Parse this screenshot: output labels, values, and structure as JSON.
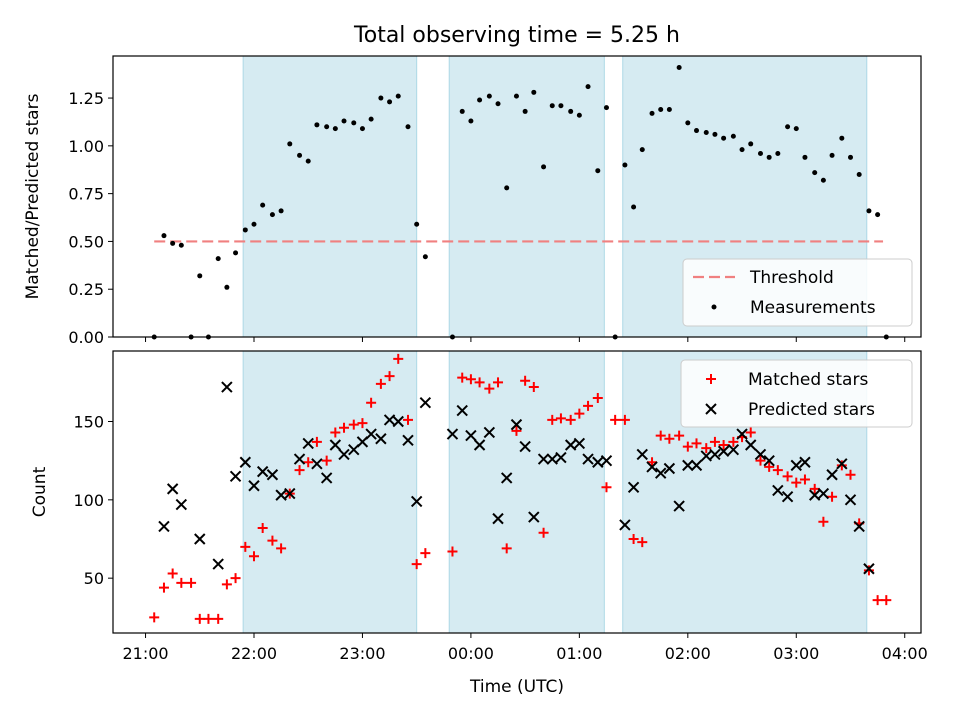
{
  "title": "Total observing time = 5.25 h",
  "colors": {
    "band": "#add8e6",
    "threshold": "#f08080",
    "matched": "#ff0000",
    "predicted": "#000000",
    "measurement": "#000000"
  },
  "chart_data": [
    {
      "type": "scatter",
      "ylabel": "Matched/Predicted stars",
      "xlabel": "",
      "ylim": [
        0,
        1.47
      ],
      "yticks": [
        0.0,
        0.25,
        0.5,
        0.75,
        1.0,
        1.25
      ],
      "ytick_labels": [
        "0.00",
        "0.25",
        "0.50",
        "0.75",
        "1.00",
        "1.25"
      ],
      "xlim_hours": [
        20.7,
        28.15
      ],
      "xticks_hours": [
        21,
        22,
        23,
        24,
        25,
        26,
        27,
        28
      ],
      "grid": false,
      "legend": "lower-right",
      "bands_hours": [
        [
          21.9,
          23.5
        ],
        [
          23.8,
          25.23
        ],
        [
          25.4,
          27.65
        ]
      ],
      "threshold": {
        "name": "Threshold",
        "value": 0.5,
        "x_hours": [
          21.08,
          27.8
        ]
      },
      "series": [
        {
          "name": "Measurements",
          "x_hours": [
            21.08,
            21.17,
            21.25,
            21.33,
            21.42,
            21.5,
            21.58,
            21.67,
            21.75,
            21.83,
            21.92,
            22.0,
            22.08,
            22.17,
            22.25,
            22.33,
            22.42,
            22.5,
            22.58,
            22.67,
            22.75,
            22.83,
            22.92,
            23.0,
            23.08,
            23.17,
            23.25,
            23.33,
            23.42,
            23.5,
            23.58,
            23.83,
            23.92,
            24.0,
            24.08,
            24.17,
            24.25,
            24.33,
            24.42,
            24.5,
            24.58,
            24.67,
            24.75,
            24.83,
            24.92,
            25.0,
            25.08,
            25.17,
            25.25,
            25.33,
            25.42,
            25.5,
            25.58,
            25.67,
            25.75,
            25.83,
            25.92,
            26.0,
            26.08,
            26.17,
            26.25,
            26.33,
            26.42,
            26.5,
            26.58,
            26.67,
            26.75,
            26.83,
            26.92,
            27.0,
            27.08,
            27.17,
            27.25,
            27.33,
            27.42,
            27.5,
            27.58,
            27.67,
            27.75,
            27.83
          ],
          "values": [
            0.0,
            0.53,
            0.49,
            0.48,
            0.0,
            0.32,
            0.0,
            0.41,
            0.26,
            0.44,
            0.56,
            0.59,
            0.69,
            0.64,
            0.66,
            1.01,
            0.95,
            0.92,
            1.11,
            1.1,
            1.09,
            1.13,
            1.12,
            1.09,
            1.14,
            1.25,
            1.23,
            1.26,
            1.1,
            0.59,
            0.42,
            0.0,
            1.18,
            1.13,
            1.24,
            1.26,
            1.22,
            0.78,
            1.26,
            1.18,
            1.28,
            0.89,
            1.21,
            1.21,
            1.18,
            1.16,
            1.31,
            0.87,
            1.2,
            0.0,
            0.9,
            0.68,
            0.98,
            1.17,
            1.19,
            1.19,
            1.41,
            1.12,
            1.08,
            1.07,
            1.06,
            1.04,
            1.05,
            0.98,
            1.01,
            0.96,
            0.94,
            0.96,
            1.1,
            1.09,
            0.94,
            0.86,
            0.82,
            0.95,
            1.04,
            0.94,
            0.85,
            0.66,
            0.64,
            0.0
          ]
        }
      ]
    },
    {
      "type": "scatter",
      "ylabel": "Count",
      "xlabel": "Time (UTC)",
      "ylim": [
        15,
        195
      ],
      "yticks": [
        50,
        100,
        150
      ],
      "ytick_labels": [
        "50",
        "100",
        "150"
      ],
      "xlim_hours": [
        20.7,
        28.15
      ],
      "xticks_hours": [
        21,
        22,
        23,
        24,
        25,
        26,
        27,
        28
      ],
      "xtick_labels": [
        "21:00",
        "22:00",
        "23:00",
        "00:00",
        "01:00",
        "02:00",
        "03:00",
        "04:00"
      ],
      "grid": false,
      "legend": "top-right",
      "bands_hours": [
        [
          21.9,
          23.5
        ],
        [
          23.8,
          25.23
        ],
        [
          25.4,
          27.65
        ]
      ],
      "series": [
        {
          "name": "Matched stars",
          "marker": "+",
          "x_hours": [
            21.08,
            21.17,
            21.25,
            21.33,
            21.42,
            21.5,
            21.58,
            21.67,
            21.75,
            21.83,
            21.92,
            22.0,
            22.08,
            22.17,
            22.25,
            22.33,
            22.42,
            22.5,
            22.58,
            22.67,
            22.75,
            22.83,
            22.92,
            23.0,
            23.08,
            23.17,
            23.25,
            23.33,
            23.42,
            23.5,
            23.58,
            23.83,
            23.92,
            24.0,
            24.08,
            24.17,
            24.25,
            24.33,
            24.42,
            24.5,
            24.58,
            24.67,
            24.75,
            24.83,
            24.92,
            25.0,
            25.08,
            25.17,
            25.25,
            25.33,
            25.42,
            25.5,
            25.58,
            25.67,
            25.75,
            25.83,
            25.92,
            26.0,
            26.08,
            26.17,
            26.25,
            26.33,
            26.42,
            26.5,
            26.58,
            26.67,
            26.75,
            26.83,
            26.92,
            27.0,
            27.08,
            27.17,
            27.25,
            27.33,
            27.42,
            27.5,
            27.58,
            27.67,
            27.75,
            27.83
          ],
          "values": [
            25,
            44,
            53,
            47,
            47,
            24,
            24,
            24,
            46,
            50,
            70,
            64,
            82,
            74,
            69,
            104,
            119,
            124,
            137,
            125,
            143,
            146,
            148,
            149,
            162,
            174,
            179,
            190,
            151,
            59,
            66,
            67,
            178,
            177,
            175,
            171,
            175,
            69,
            144,
            176,
            172,
            79,
            151,
            152,
            151,
            155,
            160,
            165,
            108,
            151,
            151,
            75,
            73,
            124,
            141,
            139,
            141,
            134,
            136,
            133,
            137,
            135,
            137,
            140,
            143,
            125,
            121,
            119,
            115,
            111,
            113,
            107,
            86,
            102,
            122,
            116,
            85,
            55,
            36,
            36
          ]
        },
        {
          "name": "Predicted stars",
          "marker": "x",
          "x_hours": [
            21.17,
            21.25,
            21.33,
            21.5,
            21.67,
            21.75,
            21.83,
            21.92,
            22.0,
            22.08,
            22.17,
            22.25,
            22.33,
            22.42,
            22.5,
            22.58,
            22.67,
            22.75,
            22.83,
            22.92,
            23.0,
            23.08,
            23.17,
            23.25,
            23.33,
            23.42,
            23.5,
            23.58,
            23.83,
            23.92,
            24.0,
            24.08,
            24.17,
            24.25,
            24.33,
            24.42,
            24.5,
            24.58,
            24.67,
            24.75,
            24.83,
            24.92,
            25.0,
            25.08,
            25.17,
            25.25,
            25.42,
            25.5,
            25.58,
            25.67,
            25.75,
            25.83,
            25.92,
            26.0,
            26.08,
            26.17,
            26.25,
            26.33,
            26.42,
            26.5,
            26.58,
            26.67,
            26.75,
            26.83,
            26.92,
            27.0,
            27.08,
            27.17,
            27.25,
            27.33,
            27.42,
            27.5,
            27.58,
            27.67
          ],
          "values": [
            83,
            107,
            97,
            75,
            59,
            172,
            115,
            124,
            109,
            118,
            116,
            103,
            104,
            126,
            136,
            123,
            114,
            135,
            129,
            132,
            137,
            142,
            139,
            151,
            150,
            138,
            99,
            162,
            142,
            157,
            141,
            135,
            143,
            88,
            114,
            148,
            134,
            89,
            126,
            126,
            127,
            135,
            136,
            126,
            124,
            125,
            84,
            108,
            129,
            121,
            117,
            120,
            96,
            122,
            122,
            128,
            129,
            131,
            132,
            142,
            135,
            129,
            125,
            106,
            102,
            122,
            124,
            103,
            104,
            116,
            123,
            100,
            83,
            56
          ]
        }
      ]
    }
  ]
}
